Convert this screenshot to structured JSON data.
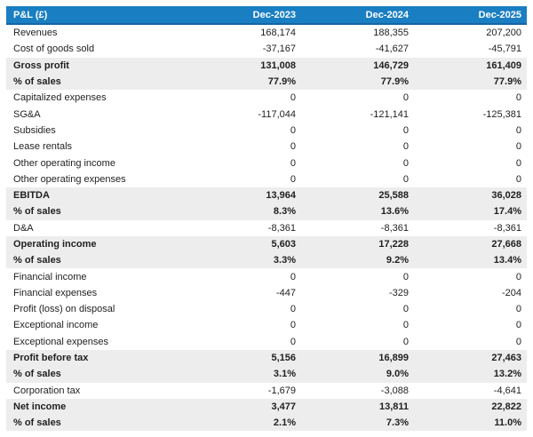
{
  "colors": {
    "header_bg": "#1a7ec2",
    "header_border": "#1565a5",
    "header_text": "#ffffff",
    "emphasis_row_bg": "#ededed",
    "row_bg": "#ffffff",
    "text": "#1f1f1f"
  },
  "table": {
    "title_column": "P&L (£)",
    "columns": [
      "Dec-2023",
      "Dec-2024",
      "Dec-2025"
    ],
    "rows": [
      {
        "label": "Revenues",
        "values": [
          "168,174",
          "188,355",
          "207,200"
        ],
        "emphasis": false
      },
      {
        "label": "Cost of goods sold",
        "values": [
          "-37,167",
          "-41,627",
          "-45,791"
        ],
        "emphasis": false
      },
      {
        "label": "Gross profit",
        "values": [
          "131,008",
          "146,729",
          "161,409"
        ],
        "emphasis": true
      },
      {
        "label": "% of sales",
        "values": [
          "77.9%",
          "77.9%",
          "77.9%"
        ],
        "emphasis": true
      },
      {
        "label": "Capitalized expenses",
        "values": [
          "0",
          "0",
          "0"
        ],
        "emphasis": false
      },
      {
        "label": "SG&A",
        "values": [
          "-117,044",
          "-121,141",
          "-125,381"
        ],
        "emphasis": false
      },
      {
        "label": "Subsidies",
        "values": [
          "0",
          "0",
          "0"
        ],
        "emphasis": false
      },
      {
        "label": "Lease rentals",
        "values": [
          "0",
          "0",
          "0"
        ],
        "emphasis": false
      },
      {
        "label": "Other operating income",
        "values": [
          "0",
          "0",
          "0"
        ],
        "emphasis": false
      },
      {
        "label": "Other operating expenses",
        "values": [
          "0",
          "0",
          "0"
        ],
        "emphasis": false
      },
      {
        "label": "EBITDA",
        "values": [
          "13,964",
          "25,588",
          "36,028"
        ],
        "emphasis": true
      },
      {
        "label": "% of sales",
        "values": [
          "8.3%",
          "13.6%",
          "17.4%"
        ],
        "emphasis": true
      },
      {
        "label": "D&A",
        "values": [
          "-8,361",
          "-8,361",
          "-8,361"
        ],
        "emphasis": false
      },
      {
        "label": "Operating income",
        "values": [
          "5,603",
          "17,228",
          "27,668"
        ],
        "emphasis": true
      },
      {
        "label": "% of sales",
        "values": [
          "3.3%",
          "9.2%",
          "13.4%"
        ],
        "emphasis": true
      },
      {
        "label": "Financial income",
        "values": [
          "0",
          "0",
          "0"
        ],
        "emphasis": false
      },
      {
        "label": "Financial expenses",
        "values": [
          "-447",
          "-329",
          "-204"
        ],
        "emphasis": false
      },
      {
        "label": "Profit (loss) on disposal",
        "values": [
          "0",
          "0",
          "0"
        ],
        "emphasis": false
      },
      {
        "label": "Exceptional income",
        "values": [
          "0",
          "0",
          "0"
        ],
        "emphasis": false
      },
      {
        "label": "Exceptional expenses",
        "values": [
          "0",
          "0",
          "0"
        ],
        "emphasis": false
      },
      {
        "label": "Profit before tax",
        "values": [
          "5,156",
          "16,899",
          "27,463"
        ],
        "emphasis": true
      },
      {
        "label": "% of sales",
        "values": [
          "3.1%",
          "9.0%",
          "13.2%"
        ],
        "emphasis": true
      },
      {
        "label": "Corporation tax",
        "values": [
          "-1,679",
          "-3,088",
          "-4,641"
        ],
        "emphasis": false
      },
      {
        "label": "Net income",
        "values": [
          "3,477",
          "13,811",
          "22,822"
        ],
        "emphasis": true
      },
      {
        "label": "% of sales",
        "values": [
          "2.1%",
          "7.3%",
          "11.0%"
        ],
        "emphasis": true
      }
    ]
  },
  "chart_data": {
    "type": "table",
    "title": "P&L (£)",
    "categories": [
      "Dec-2023",
      "Dec-2024",
      "Dec-2025"
    ],
    "series": [
      {
        "name": "Revenues",
        "values": [
          168174,
          188355,
          207200
        ]
      },
      {
        "name": "Cost of goods sold",
        "values": [
          -37167,
          -41627,
          -45791
        ]
      },
      {
        "name": "Gross profit",
        "values": [
          131008,
          146729,
          161409
        ]
      },
      {
        "name": "Gross profit % of sales",
        "values": [
          77.9,
          77.9,
          77.9
        ]
      },
      {
        "name": "Capitalized expenses",
        "values": [
          0,
          0,
          0
        ]
      },
      {
        "name": "SG&A",
        "values": [
          -117044,
          -121141,
          -125381
        ]
      },
      {
        "name": "Subsidies",
        "values": [
          0,
          0,
          0
        ]
      },
      {
        "name": "Lease rentals",
        "values": [
          0,
          0,
          0
        ]
      },
      {
        "name": "Other operating income",
        "values": [
          0,
          0,
          0
        ]
      },
      {
        "name": "Other operating expenses",
        "values": [
          0,
          0,
          0
        ]
      },
      {
        "name": "EBITDA",
        "values": [
          13964,
          25588,
          36028
        ]
      },
      {
        "name": "EBITDA % of sales",
        "values": [
          8.3,
          13.6,
          17.4
        ]
      },
      {
        "name": "D&A",
        "values": [
          -8361,
          -8361,
          -8361
        ]
      },
      {
        "name": "Operating income",
        "values": [
          5603,
          17228,
          27668
        ]
      },
      {
        "name": "Operating income % of sales",
        "values": [
          3.3,
          9.2,
          13.4
        ]
      },
      {
        "name": "Financial income",
        "values": [
          0,
          0,
          0
        ]
      },
      {
        "name": "Financial expenses",
        "values": [
          -447,
          -329,
          -204
        ]
      },
      {
        "name": "Profit (loss) on disposal",
        "values": [
          0,
          0,
          0
        ]
      },
      {
        "name": "Exceptional income",
        "values": [
          0,
          0,
          0
        ]
      },
      {
        "name": "Exceptional expenses",
        "values": [
          0,
          0,
          0
        ]
      },
      {
        "name": "Profit before tax",
        "values": [
          5156,
          16899,
          27463
        ]
      },
      {
        "name": "Profit before tax % of sales",
        "values": [
          3.1,
          9.0,
          13.2
        ]
      },
      {
        "name": "Corporation tax",
        "values": [
          -1679,
          -3088,
          -4641
        ]
      },
      {
        "name": "Net income",
        "values": [
          3477,
          13811,
          22822
        ]
      },
      {
        "name": "Net income % of sales",
        "values": [
          2.1,
          7.3,
          11.0
        ]
      }
    ]
  }
}
